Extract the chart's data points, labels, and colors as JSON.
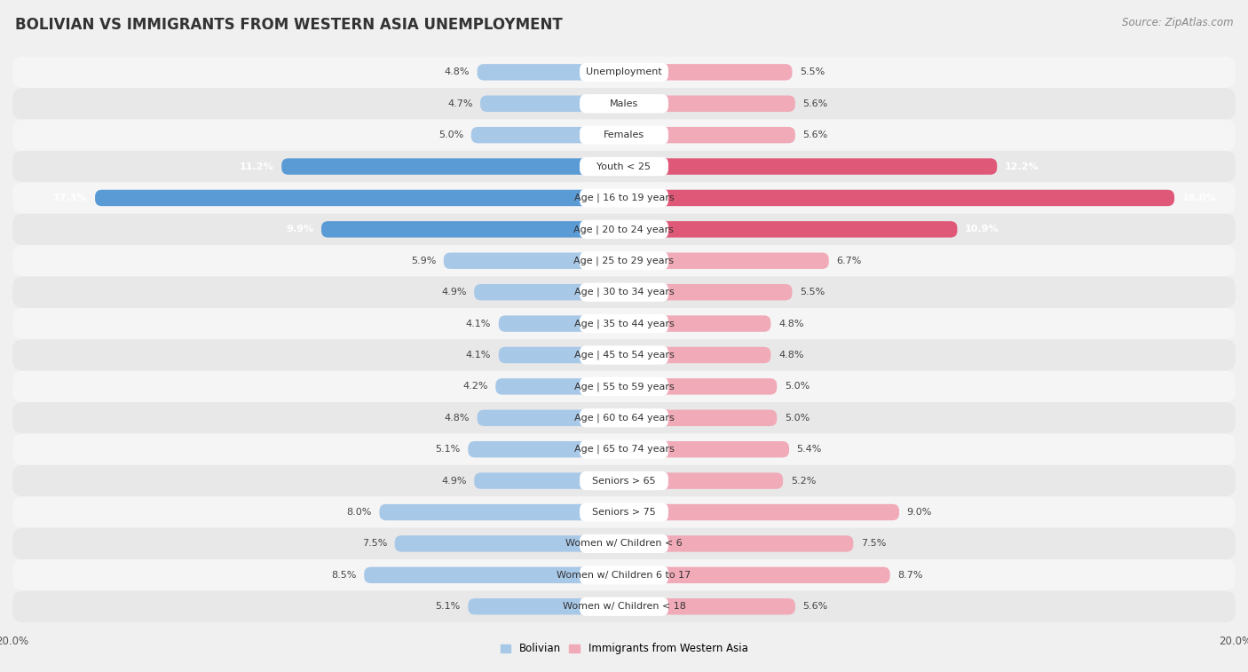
{
  "title": "BOLIVIAN VS IMMIGRANTS FROM WESTERN ASIA UNEMPLOYMENT",
  "source": "Source: ZipAtlas.com",
  "categories": [
    "Unemployment",
    "Males",
    "Females",
    "Youth < 25",
    "Age | 16 to 19 years",
    "Age | 20 to 24 years",
    "Age | 25 to 29 years",
    "Age | 30 to 34 years",
    "Age | 35 to 44 years",
    "Age | 45 to 54 years",
    "Age | 55 to 59 years",
    "Age | 60 to 64 years",
    "Age | 65 to 74 years",
    "Seniors > 65",
    "Seniors > 75",
    "Women w/ Children < 6",
    "Women w/ Children 6 to 17",
    "Women w/ Children < 18"
  ],
  "bolivian": [
    4.8,
    4.7,
    5.0,
    11.2,
    17.3,
    9.9,
    5.9,
    4.9,
    4.1,
    4.1,
    4.2,
    4.8,
    5.1,
    4.9,
    8.0,
    7.5,
    8.5,
    5.1
  ],
  "western_asia": [
    5.5,
    5.6,
    5.6,
    12.2,
    18.0,
    10.9,
    6.7,
    5.5,
    4.8,
    4.8,
    5.0,
    5.0,
    5.4,
    5.2,
    9.0,
    7.5,
    8.7,
    5.6
  ],
  "bolivian_color_normal": "#a8c8e8",
  "bolivian_color_highlight": "#5b9bd5",
  "western_asia_color_normal": "#f0aab8",
  "western_asia_color_highlight": "#e05878",
  "row_bg_light": "#f5f5f5",
  "row_bg_dark": "#e8e8e8",
  "background_color": "#f0f0f0",
  "axis_max": 20.0,
  "legend_bolivian": "Bolivian",
  "legend_western_asia": "Immigrants from Western Asia",
  "title_fontsize": 12,
  "source_fontsize": 8.5,
  "label_fontsize": 8,
  "value_fontsize": 8,
  "highlight_threshold": 9.5
}
